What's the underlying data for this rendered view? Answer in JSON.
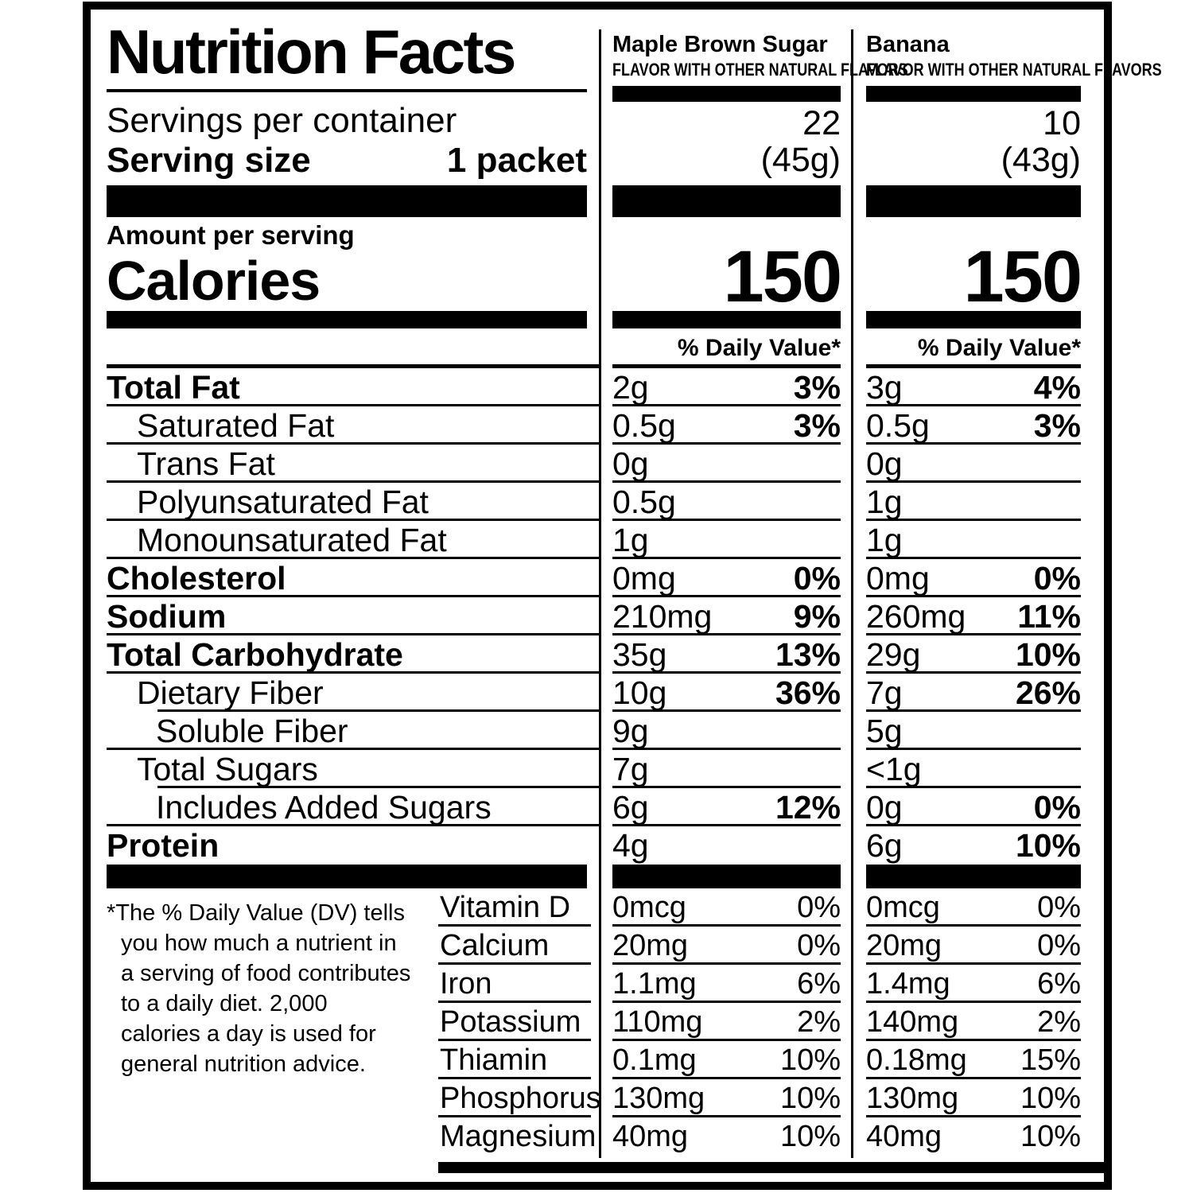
{
  "header": {
    "title": "Nutrition Facts",
    "servings_per_container_label": "Servings per container",
    "serving_size_label": "Serving size",
    "serving_size_value": "1 packet",
    "amount_per_serving_label": "Amount per serving",
    "calories_label": "Calories",
    "daily_value_header": "% Daily Value*"
  },
  "flavors": [
    {
      "name": "Maple Brown Sugar",
      "descriptor": "FLAVOR WITH OTHER NATURAL FLAVORS",
      "servings_per_container": "22",
      "serving_weight": "(45g)",
      "calories": "150"
    },
    {
      "name": "Banana",
      "descriptor": "FLAVOR WITH OTHER NATURAL FLAVORS",
      "servings_per_container": "10",
      "serving_weight": "(43g)",
      "calories": "150"
    }
  ],
  "nutrients": [
    {
      "label": "Total Fat",
      "values": [
        {
          "amount": "2g",
          "dv": "3%"
        },
        {
          "amount": "3g",
          "dv": "4%"
        }
      ]
    },
    {
      "label": "Saturated Fat",
      "values": [
        {
          "amount": "0.5g",
          "dv": "3%"
        },
        {
          "amount": "0.5g",
          "dv": "3%"
        }
      ]
    },
    {
      "label": "Trans Fat",
      "values": [
        {
          "amount": "0g",
          "dv": ""
        },
        {
          "amount": "0g",
          "dv": ""
        }
      ]
    },
    {
      "label": "Polyunsaturated Fat",
      "values": [
        {
          "amount": "0.5g",
          "dv": ""
        },
        {
          "amount": "1g",
          "dv": ""
        }
      ]
    },
    {
      "label": "Monounsaturated Fat",
      "values": [
        {
          "amount": "1g",
          "dv": ""
        },
        {
          "amount": "1g",
          "dv": ""
        }
      ]
    },
    {
      "label": "Cholesterol",
      "values": [
        {
          "amount": "0mg",
          "dv": "0%"
        },
        {
          "amount": "0mg",
          "dv": "0%"
        }
      ]
    },
    {
      "label": "Sodium",
      "values": [
        {
          "amount": "210mg",
          "dv": "9%"
        },
        {
          "amount": "260mg",
          "dv": "11%"
        }
      ]
    },
    {
      "label": "Total Carbohydrate",
      "values": [
        {
          "amount": "35g",
          "dv": "13%"
        },
        {
          "amount": "29g",
          "dv": "10%"
        }
      ]
    },
    {
      "label": "Dietary Fiber",
      "values": [
        {
          "amount": "10g",
          "dv": "36%"
        },
        {
          "amount": "7g",
          "dv": "26%"
        }
      ]
    },
    {
      "label": "Soluble Fiber",
      "values": [
        {
          "amount": "9g",
          "dv": ""
        },
        {
          "amount": "5g",
          "dv": ""
        }
      ]
    },
    {
      "label": "Total Sugars",
      "values": [
        {
          "amount": "7g",
          "dv": ""
        },
        {
          "amount": "<1g",
          "dv": ""
        }
      ]
    },
    {
      "label": "Includes Added Sugars",
      "values": [
        {
          "amount": "6g",
          "dv": "12%"
        },
        {
          "amount": "0g",
          "dv": "0%"
        }
      ]
    },
    {
      "label": "Protein",
      "values": [
        {
          "amount": "4g",
          "dv": ""
        },
        {
          "amount": "6g",
          "dv": "10%"
        }
      ]
    }
  ],
  "micronutrients": [
    {
      "label": "Vitamin D",
      "values": [
        {
          "amount": "0mcg",
          "dv": "0%"
        },
        {
          "amount": "0mcg",
          "dv": "0%"
        }
      ]
    },
    {
      "label": "Calcium",
      "values": [
        {
          "amount": "20mg",
          "dv": "0%"
        },
        {
          "amount": "20mg",
          "dv": "0%"
        }
      ]
    },
    {
      "label": "Iron",
      "values": [
        {
          "amount": "1.1mg",
          "dv": "6%"
        },
        {
          "amount": "1.4mg",
          "dv": "6%"
        }
      ]
    },
    {
      "label": "Potassium",
      "values": [
        {
          "amount": "110mg",
          "dv": "2%"
        },
        {
          "amount": "140mg",
          "dv": "2%"
        }
      ]
    },
    {
      "label": "Thiamin",
      "values": [
        {
          "amount": "0.1mg",
          "dv": "10%"
        },
        {
          "amount": "0.18mg",
          "dv": "15%"
        }
      ]
    },
    {
      "label": "Phosphorus",
      "values": [
        {
          "amount": "130mg",
          "dv": "10%"
        },
        {
          "amount": "130mg",
          "dv": "10%"
        }
      ]
    },
    {
      "label": "Magnesium",
      "values": [
        {
          "amount": "40mg",
          "dv": "10%"
        },
        {
          "amount": "40mg",
          "dv": "10%"
        }
      ]
    }
  ],
  "footnote": {
    "lines": [
      "*The % Daily Value (DV) tells",
      "you how much a nutrient in",
      "a serving of food contributes",
      "to a daily diet. 2,000",
      "calories a day is used for",
      "general nutrition advice."
    ]
  }
}
